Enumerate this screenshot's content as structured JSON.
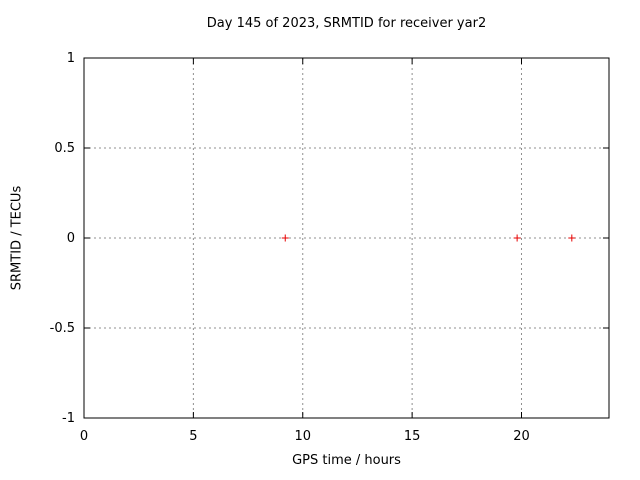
{
  "chart_data": {
    "type": "scatter",
    "title": "Day 145 of 2023, SRMTID for receiver yar2",
    "xlabel": "GPS time / hours",
    "ylabel": "SRMTID / TECUs",
    "xlim": [
      0,
      24
    ],
    "ylim": [
      -1,
      1
    ],
    "xticks": [
      0,
      5,
      10,
      15,
      20
    ],
    "yticks": [
      -1,
      -0.5,
      0,
      0.5,
      1
    ],
    "grid": true,
    "legend": "none",
    "marker": "plus",
    "marker_size": 7,
    "colors": {
      "marker": "#e60000",
      "grid": "#8f8f8f",
      "border": "#000000",
      "text": "#000000",
      "background": "#ffffff"
    },
    "series": [
      {
        "name": "SRMTID",
        "points": [
          {
            "x": 9.2,
            "y": 0
          },
          {
            "x": 19.8,
            "y": 0
          },
          {
            "x": 22.3,
            "y": 0
          }
        ]
      }
    ]
  }
}
